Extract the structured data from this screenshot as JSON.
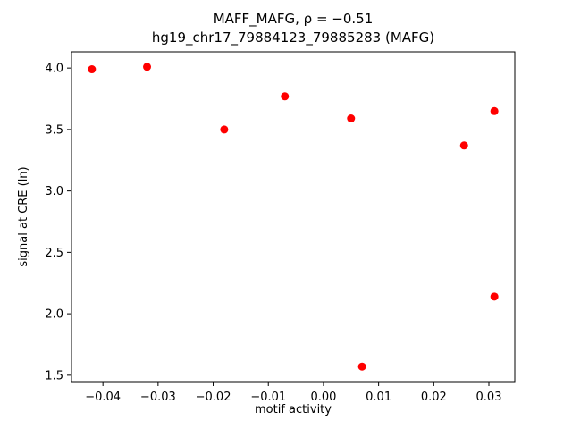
{
  "chart_data": {
    "type": "scatter",
    "title": "MAFF_MAFG, ρ = −0.51",
    "subtitle": "hg19_chr17_79884123_79885283 (MAFG)",
    "xlabel": "motif activity",
    "ylabel": "signal at CRE (ln)",
    "xlim": [
      -0.0457,
      0.0347
    ],
    "ylim": [
      1.448,
      4.132
    ],
    "xticks": [
      -0.04,
      -0.03,
      -0.02,
      -0.01,
      0.0,
      0.01,
      0.02,
      0.03
    ],
    "yticks": [
      1.5,
      2.0,
      2.5,
      3.0,
      3.5,
      4.0
    ],
    "points": [
      {
        "x": -0.042,
        "y": 3.99
      },
      {
        "x": -0.032,
        "y": 4.01
      },
      {
        "x": -0.018,
        "y": 3.5
      },
      {
        "x": -0.007,
        "y": 3.77
      },
      {
        "x": 0.005,
        "y": 3.59
      },
      {
        "x": 0.007,
        "y": 1.57
      },
      {
        "x": 0.0255,
        "y": 3.37
      },
      {
        "x": 0.031,
        "y": 3.65
      },
      {
        "x": 0.031,
        "y": 2.14
      }
    ],
    "marker_color": "#ff0000",
    "axis_color": "#000000",
    "grid": false,
    "legend": null
  }
}
